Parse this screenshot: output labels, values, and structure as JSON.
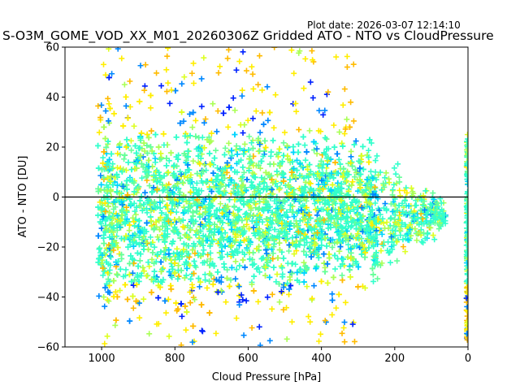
{
  "plot_date": "Plot date: 2026-03-07 12:14:10",
  "chart_data": {
    "type": "scatter",
    "title": "S-O3M_GOME_VOD_XX_M01_20260306Z Gridded ATO - NTO vs CloudPressure",
    "xlabel": "Cloud Pressure [hPa]",
    "ylabel": "ATO - NTO [DU]",
    "xlim": [
      1100,
      0
    ],
    "ylim": [
      -60,
      60
    ],
    "x_inverted": true,
    "x_ticks": [
      1000,
      800,
      600,
      400,
      200,
      0
    ],
    "y_ticks": [
      -60,
      -40,
      -20,
      0,
      20,
      40,
      60
    ],
    "x_tick_labels": [
      "1000",
      "800",
      "600",
      "400",
      "200",
      "0"
    ],
    "y_tick_labels": [
      "−60",
      "−40",
      "−20",
      "0",
      "20",
      "40",
      "60"
    ],
    "reference_line_y": 0,
    "grid": false,
    "marker": "+",
    "colors": [
      "#0022ff",
      "#0088ff",
      "#00d4ff",
      "#33ffcc",
      "#66ff99",
      "#aaff55",
      "#ddff22",
      "#ffee00",
      "#ffbb00"
    ],
    "point_cloud": {
      "x_min": 0,
      "x_max": 1010,
      "y_min": -60,
      "y_max": 60,
      "main_y_range": [
        -45,
        35
      ]
    }
  }
}
